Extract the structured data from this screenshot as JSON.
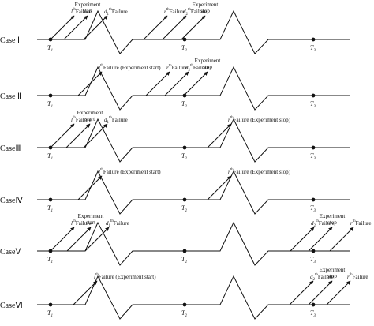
{
  "cases": [
    {
      "label": "Case Ⅰ",
      "timepoints": [
        {
          "letter": "T",
          "sub": "1"
        },
        {
          "letter": "T",
          "sub": "2"
        },
        {
          "letter": "T",
          "sub": "3"
        }
      ],
      "annotations": [
        {
          "kind": "l",
          "base": "l",
          "sup": "th",
          "text": "Failure"
        },
        {
          "kind": "exp",
          "line1": "Experiment",
          "line2": "start"
        },
        {
          "kind": "d",
          "base": "d",
          "sub": "1",
          "sup": "th",
          "text": "Failure"
        },
        {
          "kind": "r",
          "base": "r",
          "sup": "th",
          "text": "Failure"
        },
        {
          "kind": "d",
          "base": "d",
          "sub": "2",
          "sup": "th",
          "text": "Failure"
        },
        {
          "kind": "exp",
          "line1": "Experiment",
          "line2": "stop"
        }
      ]
    },
    {
      "label": "Case Ⅱ",
      "timepoints": [
        {
          "letter": "T",
          "sub": "1"
        },
        {
          "letter": "T",
          "sub": "2"
        },
        {
          "letter": "T",
          "sub": "3"
        }
      ],
      "annotations": [
        {
          "kind": "l",
          "base": "l",
          "sup": "th",
          "text": "Failure (Experiment start)"
        },
        {
          "kind": "r",
          "base": "r",
          "sup": "th",
          "text": "Failure"
        },
        {
          "kind": "d",
          "base": "d",
          "sub": "2",
          "sup": "th",
          "text": "Failure"
        },
        {
          "kind": "exp",
          "line1": "Experiment",
          "line2": "stop"
        }
      ]
    },
    {
      "label": "CaseⅢ",
      "timepoints": [
        {
          "letter": "T",
          "sub": "1"
        },
        {
          "letter": "T",
          "sub": "2"
        },
        {
          "letter": "T",
          "sub": "3"
        }
      ],
      "annotations": [
        {
          "kind": "l",
          "base": "l",
          "sup": "th",
          "text": "Failure"
        },
        {
          "kind": "exp",
          "line1": "Experiment",
          "line2": "start"
        },
        {
          "kind": "d",
          "base": "d",
          "sub": "1",
          "sup": "th",
          "text": "Failure"
        },
        {
          "kind": "r",
          "base": "r",
          "sup": "th",
          "text": "Failure (Experiment stop)"
        }
      ]
    },
    {
      "label": "CaseⅣ",
      "timepoints": [
        {
          "letter": "T",
          "sub": "1"
        },
        {
          "letter": "T",
          "sub": "2"
        },
        {
          "letter": "T",
          "sub": "3"
        }
      ],
      "annotations": [
        {
          "kind": "l",
          "base": "l",
          "sup": "th",
          "text": "Failure (Experiment start)"
        },
        {
          "kind": "r",
          "base": "r",
          "sup": "th",
          "text": "Failure (Experiment stop)"
        }
      ]
    },
    {
      "label": "CaseⅤ",
      "timepoints": [
        {
          "letter": "T",
          "sub": "1"
        },
        {
          "letter": "T",
          "sub": "2"
        },
        {
          "letter": "T",
          "sub": "3"
        }
      ],
      "annotations": [
        {
          "kind": "l",
          "base": "l",
          "sup": "th",
          "text": "Failure"
        },
        {
          "kind": "exp",
          "line1": "Experiment",
          "line2": "start"
        },
        {
          "kind": "d",
          "base": "d",
          "sub": "1",
          "sup": "th",
          "text": "Failure"
        },
        {
          "kind": "d",
          "base": "d",
          "sub": "2",
          "sup": "th",
          "text": "Failure"
        },
        {
          "kind": "exp",
          "line1": "Experiment",
          "line2": "stop"
        },
        {
          "kind": "r",
          "base": "r",
          "sup": "th",
          "text": "Failure"
        }
      ]
    },
    {
      "label": "CaseⅥ",
      "timepoints": [
        {
          "letter": "T",
          "sub": "1"
        },
        {
          "letter": "T",
          "sub": "2"
        },
        {
          "letter": "T",
          "sub": "3"
        }
      ],
      "annotations": [
        {
          "kind": "l",
          "base": "l",
          "sup": "th",
          "text": "Failure (Experiment start)"
        },
        {
          "kind": "d",
          "base": "d",
          "sub": "2",
          "sup": "th",
          "text": "Failure"
        },
        {
          "kind": "exp",
          "line1": "Experiment",
          "line2": "stop"
        },
        {
          "kind": "r",
          "base": "r",
          "sup": "th",
          "text": "Failure"
        }
      ]
    }
  ],
  "colors": {
    "line": "#111111",
    "text": "#111111",
    "background": "#ffffff"
  }
}
